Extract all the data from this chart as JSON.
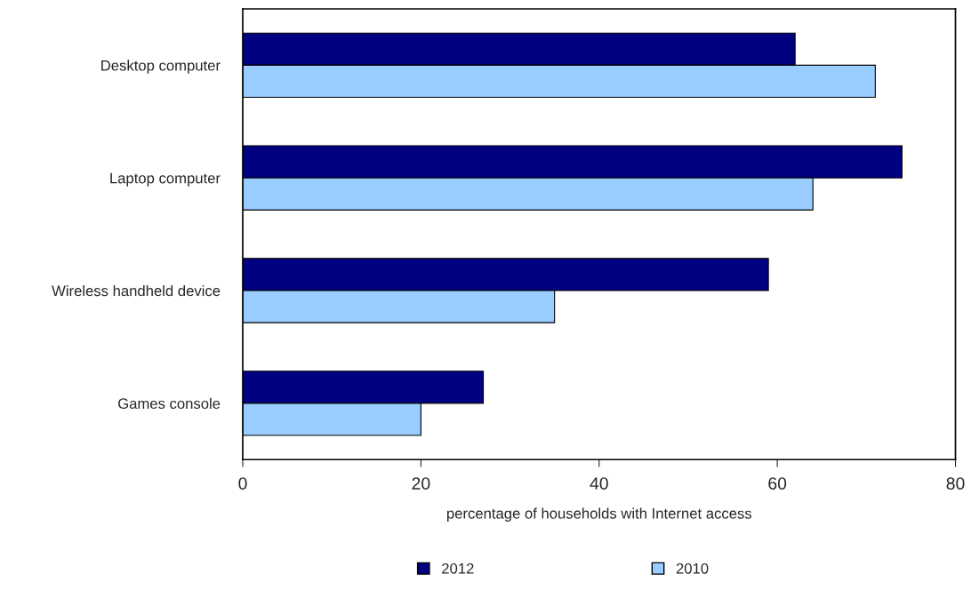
{
  "chart_data": {
    "type": "bar",
    "orientation": "horizontal",
    "xlabel": "percentage of households with Internet access",
    "categories": [
      "Desktop computer",
      "Laptop computer",
      "Wireless handheld device",
      "Games console"
    ],
    "series": [
      {
        "name": "2012",
        "color": "#000080",
        "values": [
          62,
          74,
          59,
          27
        ]
      },
      {
        "name": "2010",
        "color": "#99ccff",
        "values": [
          71,
          64,
          35,
          20
        ]
      }
    ],
    "xlim": [
      0,
      80
    ],
    "xticks": [
      0,
      20,
      40,
      60,
      80
    ],
    "grid": false,
    "legend": "bottom"
  }
}
